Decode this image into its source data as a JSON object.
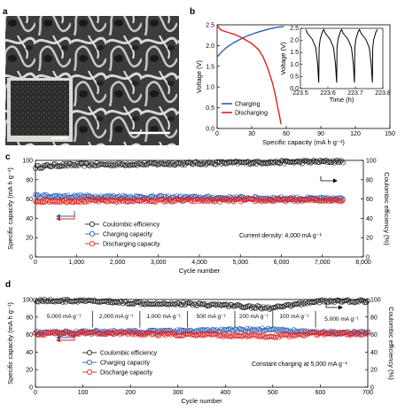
{
  "panel_a": {
    "label": "a",
    "colors": {
      "foam_dark": "#3c3c3c",
      "foam_light": "#d8d8d8",
      "inset_bg": "#dcdcd4",
      "inset_sample": "#2a2d2a"
    }
  },
  "chart_data": [
    {
      "id": "b",
      "panel_label": "b",
      "type": "line",
      "xlabel": "Specific capacity (mA h g⁻¹)",
      "ylabel": "Voltage (V)",
      "xlim": [
        0,
        150
      ],
      "ylim": [
        0,
        2.5
      ],
      "xticks": [
        "0",
        "30",
        "60",
        "90",
        "120",
        "150"
      ],
      "yticks": [
        "0.0",
        "0.5",
        "1.0",
        "1.5",
        "2.0",
        "2.5"
      ],
      "legend_position": "bottom-left",
      "series": [
        {
          "name": "Charging",
          "color": "#2a5fb0",
          "x": [
            0,
            3,
            8,
            15,
            25,
            35,
            45,
            52,
            58
          ],
          "y": [
            1.72,
            1.82,
            1.95,
            2.08,
            2.22,
            2.32,
            2.4,
            2.44,
            2.46
          ]
        },
        {
          "name": "Discharging",
          "color": "#e02020",
          "x": [
            0,
            3,
            8,
            15,
            22,
            30,
            36,
            40,
            44,
            48,
            51,
            53,
            54.5,
            55.5
          ],
          "y": [
            2.48,
            2.38,
            2.33,
            2.27,
            2.18,
            2.05,
            1.9,
            1.72,
            1.45,
            1.1,
            0.75,
            0.45,
            0.25,
            0.1
          ]
        }
      ],
      "inset": {
        "type": "line",
        "xlabel": "Time (h)",
        "ylabel": "Voltage (V)",
        "xlim": [
          223.5,
          223.8
        ],
        "ylim": [
          0,
          2.5
        ],
        "xticks": [
          "223.5",
          "223.6",
          "223.7",
          "223.8"
        ],
        "yticks": [
          "0.0",
          "0.5",
          "1.0",
          "1.5",
          "2.0",
          "2.5"
        ],
        "cycles": [
          223.52,
          223.585,
          223.65,
          223.715,
          223.78
        ],
        "color": "#000000"
      }
    },
    {
      "id": "c",
      "panel_label": "c",
      "type": "scatter",
      "xlabel": "Cycle number",
      "ylabel": "Specific capacity (mA h g⁻¹)",
      "y2label": "Coulombic efficiency (%)",
      "xlim": [
        0,
        8000
      ],
      "ylim": [
        0,
        100
      ],
      "y2lim": [
        0,
        100
      ],
      "xticks": [
        "0",
        "1,000",
        "2,000",
        "3,000",
        "4,000",
        "5,000",
        "6,000",
        "7,000",
        "8,000"
      ],
      "yticks": [
        "0",
        "20",
        "40",
        "60",
        "80",
        "100"
      ],
      "y2ticks": [
        "0",
        "20",
        "40",
        "60",
        "80",
        "100"
      ],
      "annotation": "Current density: 4,000 mA g⁻¹",
      "legend_position": "center-left",
      "series": [
        {
          "name": "Coulombic efficiency",
          "color": "#222222",
          "axis": "right",
          "x_end": 7500,
          "level": [
            {
              "x": 0,
              "y": 93
            },
            {
              "x": 500,
              "y": 95
            },
            {
              "x": 7500,
              "y": 99
            }
          ]
        },
        {
          "name": "Charging capacity",
          "color": "#2a5fb0",
          "axis": "left",
          "x_end": 7500,
          "level": [
            {
              "x": 0,
              "y": 63
            },
            {
              "x": 7500,
              "y": 60
            }
          ]
        },
        {
          "name": "Discharging capacity",
          "color": "#e02020",
          "axis": "left",
          "x_end": 7500,
          "level": [
            {
              "x": 0,
              "y": 58
            },
            {
              "x": 7500,
              "y": 59
            }
          ]
        }
      ]
    },
    {
      "id": "d",
      "panel_label": "d",
      "type": "scatter",
      "xlabel": "Cycle number",
      "ylabel": "Specific capacity (mA h g⁻¹)",
      "y2label": "Coulombic efficiency (%)",
      "xlim": [
        0,
        700
      ],
      "ylim": [
        0,
        100
      ],
      "y2lim": [
        0,
        100
      ],
      "xticks": [
        "0",
        "100",
        "200",
        "300",
        "400",
        "500",
        "600",
        "700"
      ],
      "yticks": [
        "0",
        "20",
        "40",
        "60",
        "80",
        "100"
      ],
      "y2ticks": [
        "0",
        "20",
        "40",
        "60",
        "80",
        "100"
      ],
      "annotation": "Constant charging at 5,000 mA g⁻¹",
      "legend_position": "center-left",
      "segments": [
        {
          "label": "5,000 mA g⁻¹",
          "from": 0,
          "to": 120
        },
        {
          "label": "2,000 mA g⁻¹",
          "from": 120,
          "to": 220
        },
        {
          "label": "1,000 mA g⁻¹",
          "from": 220,
          "to": 320
        },
        {
          "label": "500 mA g⁻¹",
          "from": 320,
          "to": 420
        },
        {
          "label": "200 mA g⁻¹",
          "from": 420,
          "to": 500
        },
        {
          "label": "100 mA g⁻¹",
          "from": 500,
          "to": 590
        },
        {
          "label": "5,000 mA g⁻¹",
          "from": 590,
          "to": 700
        }
      ],
      "series": [
        {
          "name": "Coulombic efficiency",
          "color": "#222222",
          "axis": "right",
          "x_end": 700,
          "level": [
            {
              "x": 0,
              "y": 99
            },
            {
              "x": 120,
              "y": 98
            },
            {
              "x": 220,
              "y": 96
            },
            {
              "x": 320,
              "y": 95
            },
            {
              "x": 420,
              "y": 93
            },
            {
              "x": 500,
              "y": 90
            },
            {
              "x": 590,
              "y": 98
            },
            {
              "x": 700,
              "y": 98
            }
          ]
        },
        {
          "name": "Charging capacity",
          "color": "#2a5fb0",
          "axis": "left",
          "x_end": 700,
          "level": [
            {
              "x": 0,
              "y": 62
            },
            {
              "x": 120,
              "y": 63
            },
            {
              "x": 220,
              "y": 63
            },
            {
              "x": 320,
              "y": 64
            },
            {
              "x": 420,
              "y": 65
            },
            {
              "x": 500,
              "y": 66
            },
            {
              "x": 590,
              "y": 62
            },
            {
              "x": 700,
              "y": 62
            }
          ]
        },
        {
          "name": "Discharge capacity",
          "color": "#e02020",
          "axis": "left",
          "x_end": 700,
          "level": [
            {
              "x": 0,
              "y": 61
            },
            {
              "x": 120,
              "y": 62
            },
            {
              "x": 220,
              "y": 61
            },
            {
              "x": 320,
              "y": 60
            },
            {
              "x": 420,
              "y": 59
            },
            {
              "x": 500,
              "y": 58
            },
            {
              "x": 590,
              "y": 61
            },
            {
              "x": 700,
              "y": 61
            }
          ]
        }
      ]
    }
  ]
}
